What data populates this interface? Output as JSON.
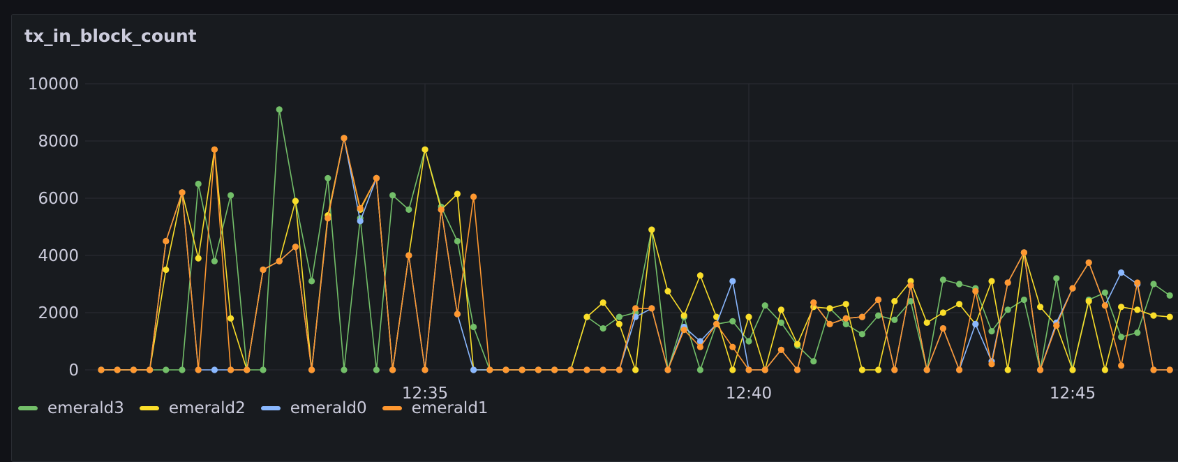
{
  "panel": {
    "title": "tx_in_block_count"
  },
  "chart_data": {
    "type": "line",
    "title": "tx_in_block_count",
    "ylim": [
      0,
      10000
    ],
    "y_ticks": [
      "10000",
      "8000",
      "6000",
      "4000",
      "2000",
      "0"
    ],
    "y_tick_values": [
      10000,
      8000,
      6000,
      4000,
      2000,
      0
    ],
    "x_ticks": [
      "12:35",
      "12:40",
      "12:45"
    ],
    "x_tick_minutes": [
      35,
      40,
      45
    ],
    "x_minutes": [
      30.0,
      30.25,
      30.5,
      30.75,
      31.0,
      31.25,
      31.5,
      31.75,
      32.0,
      32.25,
      32.5,
      32.75,
      33.0,
      33.25,
      33.5,
      33.75,
      34.0,
      34.25,
      34.5,
      34.75,
      35.0,
      35.25,
      35.5,
      35.75,
      36.0,
      36.25,
      36.5,
      36.75,
      37.0,
      37.25,
      37.5,
      37.75,
      38.0,
      38.25,
      38.5,
      38.75,
      39.0,
      39.25,
      39.5,
      39.75,
      40.0,
      40.25,
      40.5,
      40.75,
      41.0,
      41.25,
      41.5,
      41.75,
      42.0,
      42.25,
      42.5,
      42.75,
      43.0,
      43.25,
      43.5,
      43.75,
      44.0,
      44.25,
      44.5,
      44.75,
      45.0,
      45.25,
      45.5,
      45.75,
      46.0,
      46.25,
      46.5
    ],
    "grid": true,
    "legend_position": "bottom-left",
    "series": [
      {
        "name": "emerald3",
        "color": "#73bf69",
        "values": [
          0,
          0,
          0,
          0,
          0,
          0,
          6500,
          3800,
          6100,
          0,
          0,
          9100,
          5900,
          3100,
          6700,
          0,
          5300,
          0,
          6100,
          5600,
          7700,
          5700,
          4500,
          1500,
          0,
          0,
          0,
          0,
          0,
          0,
          1850,
          1450,
          1850,
          2000,
          4900,
          0,
          1850,
          0,
          1600,
          1700,
          1000,
          2250,
          1650,
          850,
          300,
          2150,
          1600,
          1250,
          1900,
          1750,
          2400,
          0,
          3150,
          3000,
          2850,
          1350,
          2100,
          2450,
          0,
          3200,
          0,
          2450,
          2700,
          1150,
          1300,
          3000,
          2600
        ]
      },
      {
        "name": "emerald2",
        "color": "#fade2a",
        "values": [
          0,
          0,
          0,
          0,
          3500,
          6200,
          3900,
          7700,
          1800,
          0,
          3500,
          3800,
          5900,
          0,
          5400,
          8100,
          5600,
          6700,
          0,
          4000,
          7700,
          5600,
          6150,
          0,
          0,
          0,
          0,
          0,
          0,
          0,
          1850,
          2350,
          1600,
          0,
          4900,
          2750,
          1900,
          3300,
          1850,
          0,
          1850,
          0,
          2100,
          900,
          2200,
          2150,
          2300,
          0,
          0,
          2400,
          3100,
          1650,
          2000,
          2300,
          1600,
          3100,
          0,
          4100,
          2200,
          1550,
          0,
          2400,
          0,
          2200,
          2100,
          1900,
          1850
        ]
      },
      {
        "name": "emerald0",
        "color": "#8ab8ff",
        "values": [
          0,
          0,
          0,
          0,
          4500,
          6200,
          0,
          0,
          0,
          0,
          3500,
          3800,
          4300,
          0,
          5300,
          8100,
          5200,
          6700,
          0,
          4000,
          0,
          5600,
          1950,
          0,
          0,
          0,
          0,
          0,
          0,
          0,
          0,
          0,
          0,
          1850,
          2150,
          0,
          1500,
          1000,
          1600,
          3100,
          0,
          0,
          700,
          0,
          2350,
          1600,
          1800,
          1850,
          2450,
          0,
          2950,
          0,
          1450,
          0,
          1600,
          300,
          3050,
          4100,
          0,
          1650,
          2850,
          3750,
          2250,
          3400,
          3000,
          0,
          0
        ]
      },
      {
        "name": "emerald1",
        "color": "#ff9830",
        "values": [
          0,
          0,
          0,
          0,
          4500,
          6200,
          0,
          7700,
          0,
          0,
          3500,
          3800,
          4300,
          0,
          5300,
          8100,
          5650,
          6700,
          0,
          4000,
          0,
          5600,
          1950,
          6050,
          0,
          0,
          0,
          0,
          0,
          0,
          0,
          0,
          0,
          2150,
          2150,
          0,
          1400,
          800,
          1600,
          800,
          0,
          0,
          700,
          0,
          2350,
          1600,
          1800,
          1850,
          2450,
          0,
          2950,
          0,
          1450,
          0,
          2750,
          200,
          3050,
          4100,
          0,
          1550,
          2850,
          3750,
          2250,
          150,
          3050,
          0,
          0
        ]
      }
    ]
  }
}
